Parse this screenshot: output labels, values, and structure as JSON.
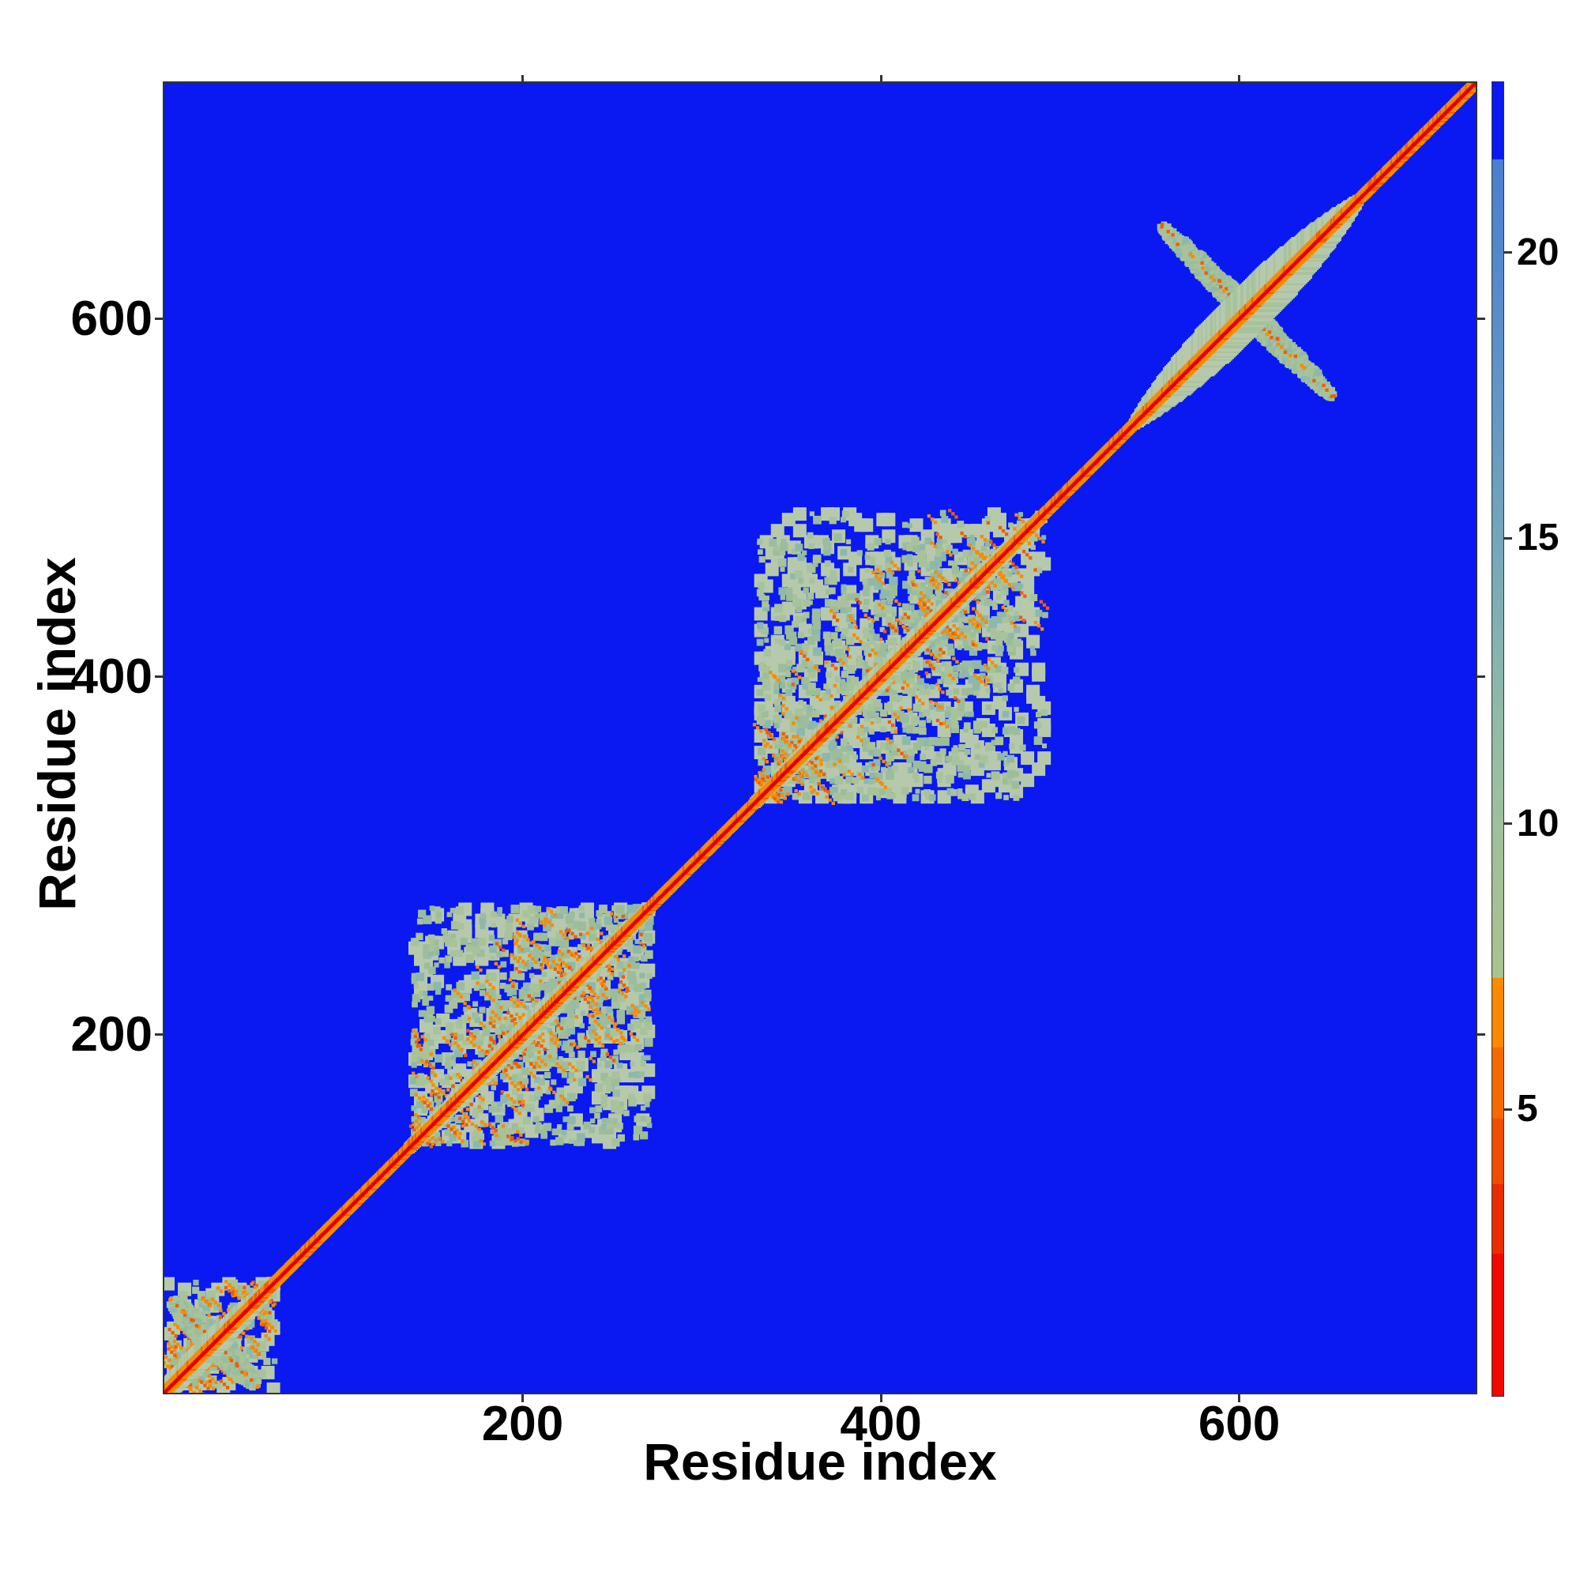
{
  "figure": {
    "x_axis": {
      "label": "Residue index",
      "ticks": [
        200,
        400,
        600
      ]
    },
    "y_axis": {
      "label": "Residue index",
      "ticks": [
        200,
        400,
        600
      ]
    },
    "colorbar": {
      "ticks": [
        5,
        10,
        15,
        20
      ]
    }
  },
  "chart_data": {
    "type": "heatmap",
    "title": "",
    "xlabel": "Residue index",
    "ylabel": "Residue index",
    "x_range": [
      0,
      732
    ],
    "y_range": [
      0,
      732
    ],
    "x_ticks": [
      200,
      400,
      600
    ],
    "y_ticks": [
      200,
      400,
      600
    ],
    "grid": false,
    "legend": "none",
    "colorbar": {
      "range": [
        0,
        23
      ],
      "ticks": [
        5,
        10,
        15,
        20
      ],
      "gradient": [
        {
          "pos": 0.0,
          "color": "#f00800"
        },
        {
          "pos": 0.108,
          "color": "#f00800"
        },
        {
          "pos": 0.1085,
          "color": "#e92d00"
        },
        {
          "pos": 0.161,
          "color": "#e92d00"
        },
        {
          "pos": 0.1615,
          "color": "#ef4e00"
        },
        {
          "pos": 0.211,
          "color": "#ef4e00"
        },
        {
          "pos": 0.2115,
          "color": "#f56a00"
        },
        {
          "pos": 0.265,
          "color": "#f56a00"
        },
        {
          "pos": 0.2655,
          "color": "#fb8a00"
        },
        {
          "pos": 0.318,
          "color": "#fb8a00"
        },
        {
          "pos": 0.3185,
          "color": "#a9c28f"
        },
        {
          "pos": 0.4,
          "color": "#a2c097"
        },
        {
          "pos": 0.46,
          "color": "#9bbf9f"
        },
        {
          "pos": 0.52,
          "color": "#90b9a8"
        },
        {
          "pos": 0.58,
          "color": "#84b1b1"
        },
        {
          "pos": 0.64,
          "color": "#77a7ba"
        },
        {
          "pos": 0.72,
          "color": "#699bc2"
        },
        {
          "pos": 0.8,
          "color": "#5d90c8"
        },
        {
          "pos": 0.88,
          "color": "#5286cd"
        },
        {
          "pos": 0.941,
          "color": "#4a7fd0"
        },
        {
          "pos": 0.9415,
          "color": "#0a18f2"
        },
        {
          "pos": 1.0,
          "color": "#0a18f2"
        }
      ]
    },
    "colors": {
      "background": "#0a18f2",
      "sage_light": "#b6c9ad",
      "sage": "#a8c29c",
      "sage2": "#9cbd9b",
      "teal": "#8db8ab",
      "orange": "#f78c00",
      "orange_deep": "#ee5f00",
      "red": "#ee1500",
      "red_core": "#d80000",
      "frame": "#333333",
      "text": "#000000"
    },
    "features": {
      "diagonal": {
        "halo_half": 3.0,
        "orange_half": 1.9,
        "red_half": 0.95,
        "core_half": 0.6
      },
      "bulges": [
        {
          "c": 24,
          "l": 40,
          "w": 4.5
        },
        {
          "c": 204,
          "l": 74,
          "w": 3.5
        },
        {
          "c": 410,
          "l": 88,
          "w": 3.5
        },
        {
          "c": 604,
          "l": 64,
          "w": 11
        }
      ],
      "clusters": [
        {
          "r0": 2,
          "r1": 60,
          "seed": 11,
          "density": 0.5,
          "fade": 0
        },
        {
          "r0": 140,
          "r1": 268,
          "seed": 7,
          "density": 0.6,
          "fade": 0
        },
        {
          "r0": 333,
          "r1": 490,
          "seed": 13,
          "density": 0.56,
          "fade": 60
        }
      ],
      "arms": [
        {
          "c": 28,
          "half": 24,
          "w": 4.0,
          "seed": 3
        },
        {
          "c": 604.5,
          "half": 48,
          "w": 3.4,
          "seed": 5
        }
      ]
    }
  }
}
